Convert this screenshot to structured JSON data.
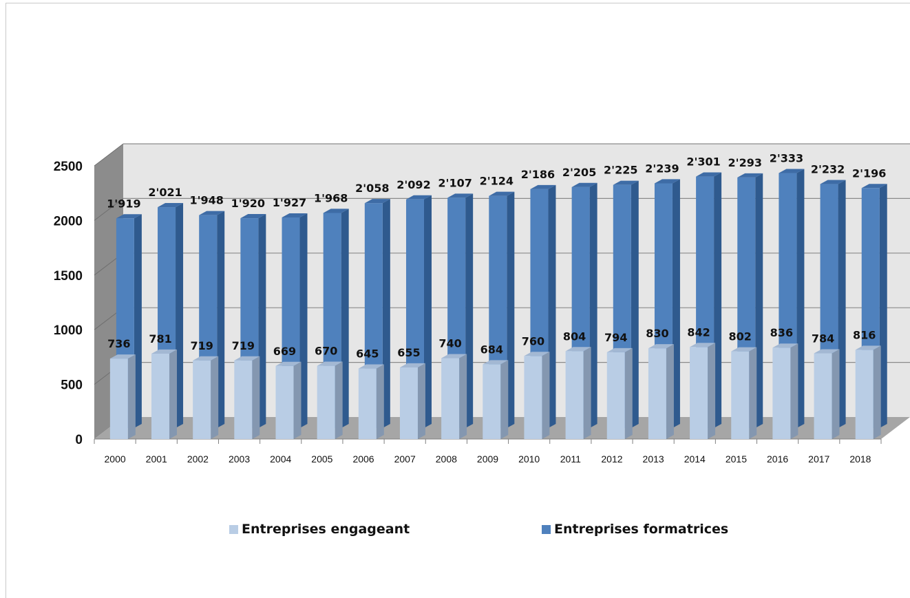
{
  "chart_data": {
    "type": "bar",
    "categories": [
      "2000",
      "2001",
      "2002",
      "2003",
      "2004",
      "2005",
      "2006",
      "2007",
      "2008",
      "2009",
      "2010",
      "2011",
      "2012",
      "2013",
      "2014",
      "2015",
      "2016",
      "2017",
      "2018"
    ],
    "series": [
      {
        "name": "Entreprises engageant",
        "color": "#b9cde5",
        "values": [
          736,
          781,
          719,
          719,
          669,
          670,
          645,
          655,
          740,
          684,
          760,
          804,
          794,
          830,
          842,
          802,
          836,
          784,
          816
        ],
        "labels": [
          "736",
          "781",
          "719",
          "719",
          "669",
          "670",
          "645",
          "655",
          "740",
          "684",
          "760",
          "804",
          "794",
          "830",
          "842",
          "802",
          "836",
          "784",
          "816"
        ]
      },
      {
        "name": "Entreprises formatrices",
        "color": "#4f81bd",
        "values": [
          1919,
          2021,
          1948,
          1920,
          1927,
          1968,
          2058,
          2092,
          2107,
          2124,
          2186,
          2205,
          2225,
          2239,
          2301,
          2293,
          2333,
          2232,
          2196
        ],
        "labels": [
          "1'919",
          "2'021",
          "1'948",
          "1'920",
          "1'927",
          "1'968",
          "2'058",
          "2'092",
          "2'107",
          "2'124",
          "2'186",
          "2'205",
          "2'225",
          "2'239",
          "2'301",
          "2'293",
          "2'333",
          "2'232",
          "2'196"
        ]
      }
    ],
    "ylim": [
      0,
      2500
    ],
    "yticks": [
      "0",
      "500",
      "1000",
      "1500",
      "2000",
      "2500"
    ],
    "grid": true,
    "legend": "bottom",
    "style": "3d-column"
  },
  "legend": {
    "items": [
      {
        "label": "Entreprises engageant",
        "color": "#b9cde5"
      },
      {
        "label": "Entreprises formatrices",
        "color": "#4f81bd"
      }
    ]
  }
}
